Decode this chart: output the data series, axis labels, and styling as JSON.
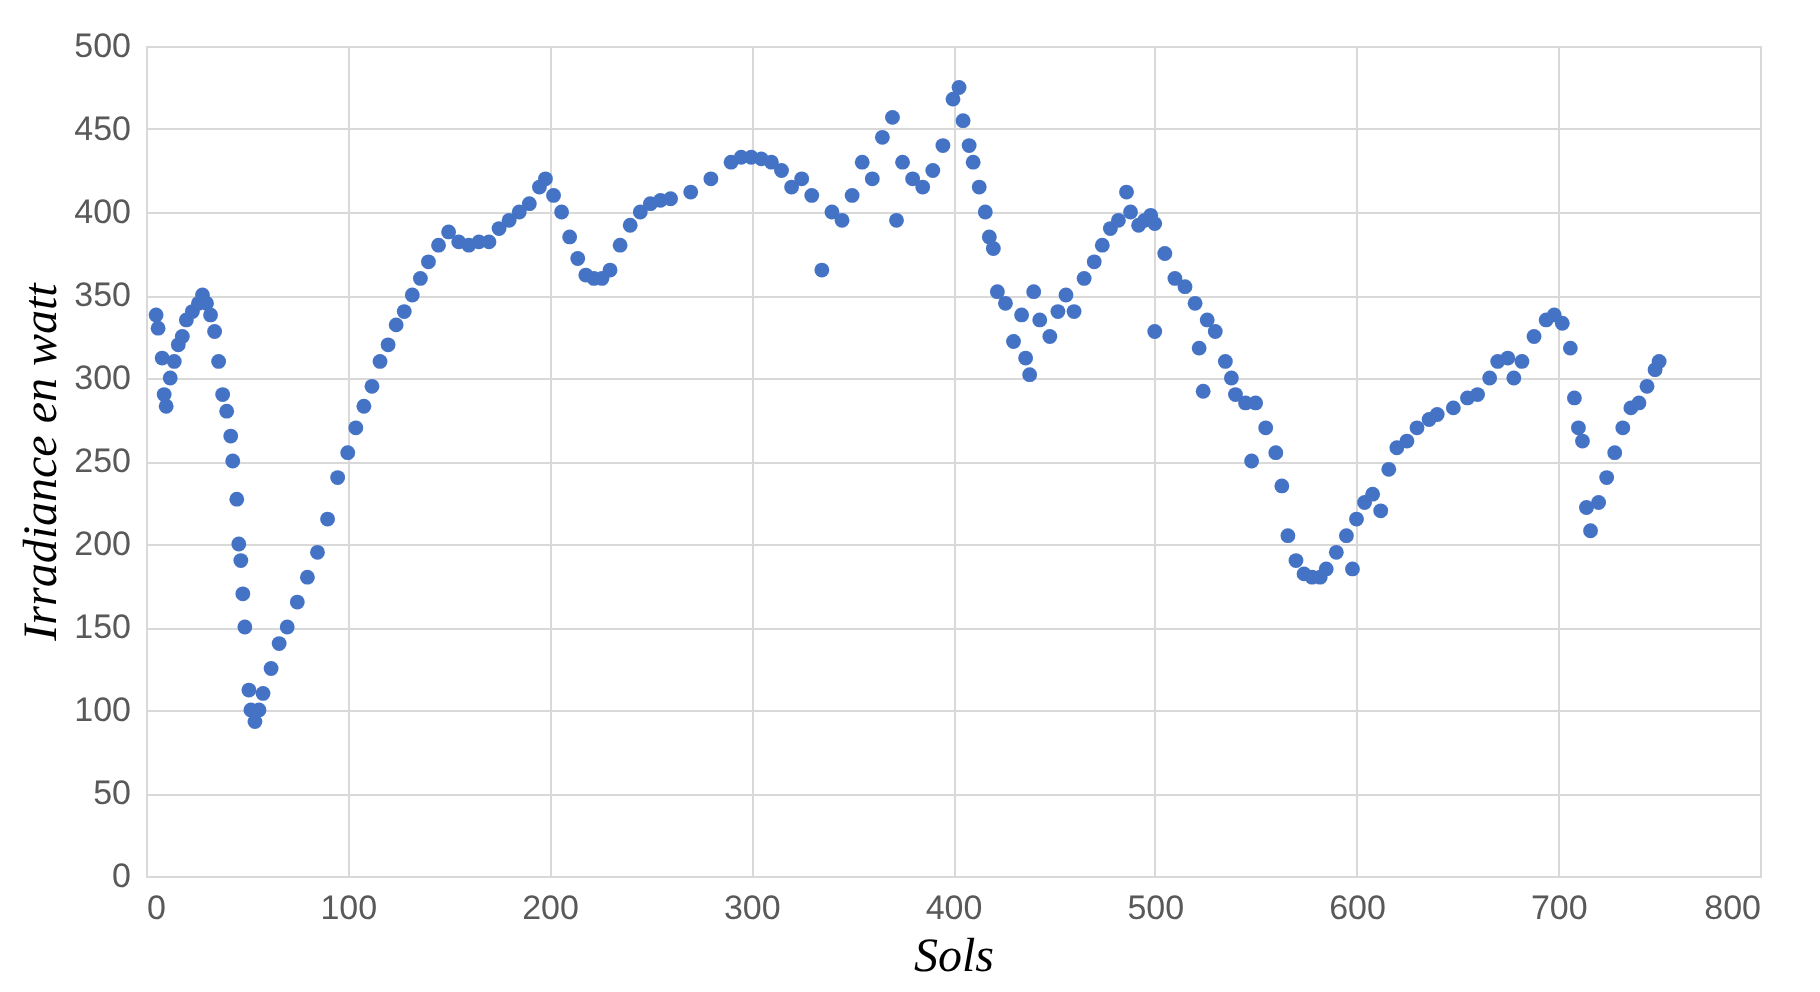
{
  "chart_data": {
    "type": "scatter",
    "xlabel": "Sols",
    "ylabel": "Irradiance en watt",
    "xlim": [
      0,
      800
    ],
    "xticks": [
      0,
      100,
      200,
      300,
      400,
      500,
      600,
      700,
      800
    ],
    "ylim": [
      0,
      500
    ],
    "yticks": [
      0,
      50,
      100,
      150,
      200,
      250,
      300,
      350,
      400,
      450,
      500
    ],
    "grid": true,
    "marker": "circle",
    "series": [
      {
        "color": "#4472c4",
        "x": [
          5,
          6,
          8,
          9,
          10,
          12,
          14,
          16,
          18,
          20,
          23,
          26,
          28,
          30,
          32,
          34,
          36,
          38,
          40,
          42,
          43,
          45,
          46,
          47,
          48,
          49,
          51,
          52,
          54,
          56,
          58,
          62,
          66,
          70,
          75,
          80,
          85,
          90,
          95,
          100,
          104,
          108,
          112,
          116,
          120,
          124,
          128,
          132,
          136,
          140,
          145,
          150,
          155,
          160,
          165,
          170,
          175,
          180,
          185,
          190,
          195,
          198,
          202,
          206,
          210,
          214,
          218,
          222,
          226,
          230,
          235,
          240,
          245,
          250,
          255,
          260,
          270,
          280,
          290,
          295,
          300,
          305,
          310,
          315,
          320,
          325,
          330,
          335,
          340,
          345,
          350,
          355,
          360,
          365,
          370,
          372,
          375,
          380,
          385,
          390,
          395,
          400,
          403,
          405,
          408,
          410,
          413,
          416,
          418,
          420,
          422,
          426,
          430,
          434,
          436,
          438,
          440,
          443,
          448,
          452,
          456,
          460,
          465,
          470,
          474,
          478,
          482,
          486,
          488,
          492,
          495,
          498,
          500,
          500,
          505,
          510,
          515,
          520,
          522,
          524,
          526,
          530,
          535,
          538,
          540,
          545,
          548,
          550,
          555,
          560,
          563,
          566,
          570,
          574,
          578,
          582,
          585,
          590,
          595,
          598,
          600,
          604,
          608,
          612,
          616,
          620,
          625,
          630,
          636,
          640,
          648,
          655,
          660,
          666,
          670,
          675,
          678,
          682,
          688,
          694,
          698,
          702,
          706,
          708,
          710,
          712,
          714,
          716,
          720,
          724,
          728,
          732,
          736,
          740,
          744,
          748,
          750
        ],
        "values": [
          338,
          330,
          312,
          290,
          283,
          300,
          310,
          320,
          325,
          335,
          340,
          345,
          350,
          345,
          338,
          328,
          310,
          290,
          280,
          265,
          250,
          227,
          200,
          190,
          170,
          150,
          112,
          100,
          93,
          100,
          110,
          125,
          140,
          150,
          165,
          180,
          195,
          215,
          240,
          255,
          270,
          283,
          295,
          310,
          320,
          332,
          340,
          350,
          360,
          370,
          380,
          388,
          382,
          380,
          382,
          382,
          390,
          395,
          400,
          405,
          415,
          420,
          410,
          400,
          385,
          372,
          362,
          360,
          360,
          365,
          380,
          392,
          400,
          405,
          407,
          408,
          412,
          420,
          430,
          433,
          433,
          432,
          430,
          425,
          415,
          420,
          410,
          365,
          400,
          395,
          410,
          430,
          420,
          445,
          457,
          395,
          430,
          420,
          415,
          425,
          440,
          468,
          475,
          455,
          440,
          430,
          415,
          400,
          385,
          378,
          352,
          345,
          322,
          338,
          312,
          302,
          352,
          335,
          325,
          340,
          350,
          340,
          360,
          370,
          380,
          390,
          395,
          412,
          400,
          392,
          395,
          398,
          393,
          328,
          375,
          360,
          355,
          345,
          318,
          292,
          335,
          328,
          310,
          300,
          290,
          285,
          250,
          285,
          270,
          255,
          235,
          205,
          190,
          182,
          180,
          180,
          185,
          195,
          205,
          185,
          215,
          225,
          230,
          220,
          245,
          258,
          262,
          270,
          275,
          278,
          282,
          288,
          290,
          300,
          310,
          312,
          300,
          310,
          325,
          335,
          338,
          333,
          318,
          288,
          270,
          262,
          222,
          208,
          225,
          240,
          255,
          270,
          282,
          285,
          295,
          305,
          310
        ]
      }
    ]
  }
}
